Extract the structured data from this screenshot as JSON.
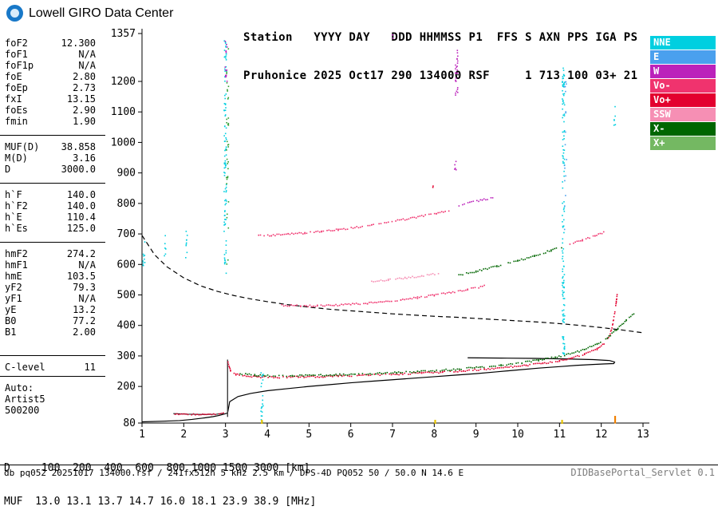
{
  "brand": {
    "logo_text": "Lowell GIRO Data Center"
  },
  "header": {
    "line1": "Station   YYYY DAY   DDD HHMMSS P1  FFS S AXN PPS IGA PS",
    "line2": "Pruhonice 2025 Oct17 290 134000 RSF     1 713 100 03+ 21"
  },
  "params": {
    "groups": [
      {
        "rule_top": false,
        "rule_bottom": false,
        "spacer": false,
        "rows": [
          {
            "label": "foF2",
            "value": "12.300"
          },
          {
            "label": "foF1",
            "value": "N/A"
          },
          {
            "label": "foF1p",
            "value": "N/A"
          },
          {
            "label": "foE",
            "value": "2.80"
          },
          {
            "label": "foEp",
            "value": "2.73"
          },
          {
            "label": "fxI",
            "value": "13.15"
          },
          {
            "label": "foEs",
            "value": "2.90"
          },
          {
            "label": "fmin",
            "value": "1.90"
          }
        ]
      },
      {
        "rule_top": true,
        "rule_bottom": false,
        "spacer": false,
        "rows": [
          {
            "label": "MUF(D)",
            "value": "38.858"
          },
          {
            "label": "M(D)",
            "value": "3.16"
          },
          {
            "label": "D",
            "value": "3000.0"
          }
        ]
      },
      {
        "rule_top": true,
        "rule_bottom": false,
        "spacer": false,
        "rows": [
          {
            "label": "h`F",
            "value": "140.0"
          },
          {
            "label": "h`F2",
            "value": "140.0"
          },
          {
            "label": "h`E",
            "value": "110.4"
          },
          {
            "label": "h`Es",
            "value": "125.0"
          }
        ]
      },
      {
        "rule_top": true,
        "rule_bottom": false,
        "spacer": false,
        "rows": [
          {
            "label": "hmF2",
            "value": "274.2"
          },
          {
            "label": "hmF1",
            "value": "N/A"
          },
          {
            "label": "hmE",
            "value": "103.5"
          },
          {
            "label": "yF2",
            "value": "79.3"
          },
          {
            "label": "yF1",
            "value": "N/A"
          },
          {
            "label": "yE",
            "value": "13.2"
          },
          {
            "label": "B0",
            "value": "77.2"
          },
          {
            "label": "B1",
            "value": "2.00"
          }
        ]
      },
      {
        "rule_top": true,
        "rule_bottom": true,
        "spacer": true,
        "rows": [
          {
            "label": "C-level",
            "value": "11"
          }
        ]
      },
      {
        "rule_top": false,
        "rule_bottom": false,
        "spacer": false,
        "rows": [
          {
            "label": "Auto:",
            "value": ""
          },
          {
            "label": "Artist5",
            "value": ""
          },
          {
            "label": "500200",
            "value": ""
          }
        ]
      }
    ]
  },
  "legend": {
    "items": [
      {
        "label": "NNE",
        "color": "#00cfe0"
      },
      {
        "label": "E",
        "color": "#4aa0ee"
      },
      {
        "label": "W",
        "color": "#bb22bb"
      },
      {
        "label": "Vo-",
        "color": "#f0336e"
      },
      {
        "label": "Vo+",
        "color": "#e3002f"
      },
      {
        "label": "SSW",
        "color": "#f68fb4"
      },
      {
        "label": "X-",
        "color": "#006600"
      },
      {
        "label": "X+",
        "color": "#74b862"
      }
    ]
  },
  "scaled_muf_table": {
    "d_label": "D",
    "d_values": [
      "100",
      "200",
      "400",
      "600",
      "800",
      "1000",
      "1500",
      "3000"
    ],
    "d_unit": "[km]",
    "muf_label": "MUF",
    "muf_values": [
      "13.0",
      "13.1",
      "13.7",
      "14.7",
      "16.0",
      "18.1",
      "23.9",
      "38.9"
    ],
    "muf_unit": "[MHz]"
  },
  "statusbar": {
    "left": "db pq052 20251017 134000.rsf / 241fx512h 5 kHz 2.5 km / DPS-4D PQ052 50 / 50.0 N 14.6 E",
    "right": "DIDBasePortal_Servlet 0.1"
  },
  "chart_data": {
    "type": "scatter",
    "content": "ionogram: virtual height vs frequency",
    "x_unit": "MHz",
    "y_unit": "km",
    "x_range": [
      1,
      13
    ],
    "y_range": [
      80,
      1357
    ],
    "x_ticks": [
      1,
      2,
      3,
      4,
      5,
      6,
      7,
      8,
      9,
      10,
      11,
      12,
      13
    ],
    "y_ticks": [
      1357,
      1200,
      1100,
      1000,
      900,
      800,
      700,
      600,
      500,
      400,
      300,
      200,
      80
    ],
    "traces": [
      {
        "name": "transmission-muf-curve",
        "style": "dashed",
        "color": "#000000",
        "width": 1.2,
        "points": [
          [
            1,
            695
          ],
          [
            1.3,
            632
          ],
          [
            1.6,
            592
          ],
          [
            2,
            556
          ],
          [
            2.4,
            530
          ],
          [
            2.8,
            512
          ],
          [
            3.2,
            498
          ],
          [
            3.6,
            487
          ],
          [
            4,
            478
          ],
          [
            4.5,
            468
          ],
          [
            5,
            460
          ],
          [
            5.5,
            453
          ],
          [
            6,
            448
          ],
          [
            6.5,
            443
          ],
          [
            7,
            438
          ],
          [
            7.5,
            434
          ],
          [
            8,
            430
          ],
          [
            8.5,
            427
          ],
          [
            9,
            423
          ],
          [
            9.5,
            419
          ],
          [
            10,
            415
          ],
          [
            10.5,
            411
          ],
          [
            11,
            406
          ],
          [
            11.5,
            400
          ],
          [
            12,
            393
          ],
          [
            12.5,
            385
          ],
          [
            13,
            376
          ]
        ]
      },
      {
        "name": "electron-density-profile",
        "style": "line",
        "color": "#000000",
        "width": 1.2,
        "points": [
          [
            1,
            84
          ],
          [
            1.5,
            86
          ],
          [
            1.9,
            88
          ],
          [
            2.2,
            92
          ],
          [
            2.5,
            97
          ],
          [
            2.7,
            101
          ],
          [
            2.85,
            105
          ],
          [
            2.98,
            110
          ],
          [
            3.05,
            113
          ],
          [
            3.1,
            150
          ],
          [
            3.3,
            167
          ],
          [
            3.6,
            177
          ],
          [
            4,
            186
          ],
          [
            4.5,
            193
          ],
          [
            5,
            200
          ],
          [
            5.5,
            206
          ],
          [
            6,
            212
          ],
          [
            6.5,
            217
          ],
          [
            7,
            222
          ],
          [
            7.5,
            227
          ],
          [
            8,
            232
          ],
          [
            8.5,
            237
          ],
          [
            9,
            242
          ],
          [
            9.5,
            248
          ],
          [
            10,
            254
          ],
          [
            10.5,
            260
          ],
          [
            11,
            265
          ],
          [
            11.4,
            269
          ],
          [
            11.8,
            272
          ],
          [
            12.1,
            274
          ],
          [
            12.3,
            275
          ],
          [
            12.32,
            280
          ],
          [
            12.2,
            285
          ],
          [
            11.8,
            288
          ],
          [
            11.2,
            290
          ],
          [
            10.4,
            292
          ],
          [
            9.6,
            293
          ],
          [
            8.8,
            294
          ]
        ]
      },
      {
        "name": "e-layer-line",
        "style": "line",
        "color": "#000000",
        "width": 1,
        "points": [
          [
            1.75,
            111
          ],
          [
            2.1,
            109
          ],
          [
            2.5,
            108
          ],
          [
            2.8,
            109
          ],
          [
            2.95,
            112
          ]
        ]
      },
      {
        "name": "e-f-cusp",
        "style": "line",
        "color": "#3c3c3c",
        "width": 1.4,
        "points": [
          [
            3.05,
            100
          ],
          [
            3.05,
            288
          ]
        ]
      },
      {
        "name": "e-layer-o-trace",
        "style": "dots",
        "color": "#e3002f",
        "points": [
          [
            1.75,
            110
          ],
          [
            2.1,
            108
          ],
          [
            2.5,
            107
          ],
          [
            2.8,
            108
          ],
          [
            2.95,
            111
          ]
        ]
      },
      {
        "name": "f-layer-o-trace",
        "style": "dots",
        "color": "#e3002f",
        "points": [
          [
            3.06,
            280
          ],
          [
            3.12,
            252
          ],
          [
            3.25,
            240
          ],
          [
            3.5,
            234
          ],
          [
            3.8,
            231
          ],
          [
            4.2,
            230
          ],
          [
            4.7,
            231
          ],
          [
            5.2,
            232
          ],
          [
            5.7,
            234
          ],
          [
            6.2,
            236
          ],
          [
            6.7,
            238
          ],
          [
            7.2,
            241
          ],
          [
            7.7,
            244
          ],
          [
            8.2,
            247
          ],
          [
            8.7,
            251
          ],
          [
            9.2,
            256
          ],
          [
            9.7,
            262
          ],
          [
            10.2,
            269
          ],
          [
            10.6,
            276
          ],
          [
            11,
            284
          ],
          [
            11.3,
            293
          ],
          [
            11.6,
            305
          ],
          [
            11.9,
            322
          ],
          [
            12.1,
            344
          ],
          [
            12.2,
            368
          ],
          [
            12.27,
            400
          ],
          [
            12.32,
            440
          ],
          [
            12.36,
            478
          ],
          [
            12.38,
            500
          ]
        ]
      },
      {
        "name": "f-layer-x-trace",
        "style": "dots",
        "color": "#006600",
        "points": [
          [
            3.35,
            242
          ],
          [
            3.7,
            237
          ],
          [
            4.1,
            235
          ],
          [
            4.6,
            235
          ],
          [
            5.1,
            236
          ],
          [
            5.6,
            238
          ],
          [
            6.1,
            240
          ],
          [
            6.6,
            242
          ],
          [
            7.1,
            245
          ],
          [
            7.6,
            248
          ],
          [
            8.1,
            252
          ],
          [
            8.6,
            257
          ],
          [
            9.1,
            263
          ],
          [
            9.6,
            270
          ],
          [
            10.1,
            278
          ],
          [
            10.5,
            286
          ],
          [
            10.9,
            296
          ],
          [
            11.3,
            308
          ],
          [
            11.6,
            321
          ],
          [
            11.9,
            338
          ],
          [
            12.15,
            360
          ],
          [
            12.4,
            390
          ],
          [
            12.6,
            418
          ],
          [
            12.78,
            440
          ]
        ]
      },
      {
        "name": "second-hop-o-trace",
        "style": "dots",
        "color": "#f0336e",
        "points": [
          [
            4.35,
            466
          ],
          [
            4.8,
            464
          ],
          [
            5.2,
            464
          ],
          [
            5.6,
            466
          ],
          [
            6,
            469
          ],
          [
            6.4,
            473
          ],
          [
            6.8,
            478
          ],
          [
            7.2,
            484
          ],
          [
            7.6,
            491
          ],
          [
            8,
            499
          ],
          [
            8.4,
            508
          ],
          [
            8.8,
            518
          ],
          [
            9.2,
            529
          ]
        ]
      },
      {
        "name": "second-hop-x-arc",
        "style": "dots",
        "color": "#f68fb4",
        "points": [
          [
            6.5,
            544
          ],
          [
            6.9,
            549
          ],
          [
            7.3,
            555
          ],
          [
            7.7,
            562
          ],
          [
            8.1,
            570
          ]
        ]
      },
      {
        "name": "second-hop-x-rising",
        "style": "dots",
        "color": "#006600",
        "points": [
          [
            8.5,
            562
          ],
          [
            9,
            577
          ],
          [
            9.5,
            594
          ],
          [
            10,
            612
          ],
          [
            10.4,
            628
          ],
          [
            10.8,
            646
          ],
          [
            11.05,
            656
          ]
        ]
      },
      {
        "name": "second-hop-tail",
        "style": "dots",
        "color": "#f0336e",
        "points": [
          [
            11.25,
            665
          ],
          [
            11.55,
            680
          ],
          [
            11.85,
            695
          ],
          [
            12.1,
            707
          ]
        ]
      },
      {
        "name": "third-hop-trace",
        "style": "dots",
        "color": "#f0336e",
        "points": [
          [
            3.75,
            694
          ],
          [
            4.1,
            696
          ],
          [
            4.5,
            699
          ],
          [
            4.9,
            703
          ],
          [
            5.3,
            708
          ],
          [
            5.7,
            714
          ],
          [
            6.1,
            721
          ],
          [
            6.5,
            729
          ],
          [
            6.9,
            738
          ],
          [
            7.3,
            748
          ],
          [
            7.7,
            758
          ],
          [
            8.05,
            767
          ],
          [
            8.35,
            775
          ]
        ]
      },
      {
        "name": "third-hop-x-cluster",
        "style": "dots",
        "color": "#bb22bb",
        "points": [
          [
            8.55,
            793
          ],
          [
            8.85,
            802
          ],
          [
            9.15,
            811
          ],
          [
            9.4,
            819
          ]
        ]
      }
    ],
    "noise_columns": [
      {
        "f": 2.98,
        "h_range": [
          560,
          1340
        ],
        "color": "#00cfe0",
        "count": 95
      },
      {
        "f": 3.03,
        "h_range": [
          600,
          1320
        ],
        "color": "#2f9e2f",
        "count": 35
      },
      {
        "f": 3.0,
        "h_range": [
          1190,
          1335
        ],
        "color": "#bb22bb",
        "count": 14
      },
      {
        "f": 8.52,
        "h_range": [
          1155,
          1320
        ],
        "color": "#bb22bb",
        "count": 26
      },
      {
        "f": 8.5,
        "h_range": [
          905,
          945
        ],
        "color": "#bb22bb",
        "count": 5
      },
      {
        "f": 11.08,
        "h_range": [
          300,
          1250
        ],
        "color": "#00cfe0",
        "count": 130
      },
      {
        "f": 11.13,
        "h_range": [
          620,
          1210
        ],
        "color": "#4aa0ee",
        "count": 18
      },
      {
        "f": 3.86,
        "h_range": [
          82,
          250
        ],
        "color": "#00cfe0",
        "count": 20
      },
      {
        "f": 1.03,
        "h_range": [
          590,
          710
        ],
        "color": "#00cfe0",
        "count": 10
      },
      {
        "f": 1.55,
        "h_range": [
          630,
          700
        ],
        "color": "#00cfe0",
        "count": 6
      },
      {
        "f": 2.05,
        "h_range": [
          615,
          720
        ],
        "color": "#00cfe0",
        "count": 9
      },
      {
        "f": 12.3,
        "h_range": [
          1040,
          1120
        ],
        "color": "#00cfe0",
        "count": 6
      },
      {
        "f": 7.0,
        "h_range": [
          1335,
          1356
        ],
        "color": "#bb22bb",
        "count": 3
      },
      {
        "f": 7.93,
        "h_range": [
          850,
          862
        ],
        "color": "#e3002f",
        "count": 2
      }
    ],
    "bottom_marks": [
      {
        "f": 3.87,
        "h": 84,
        "color": "#e8c400"
      },
      {
        "f": 8.02,
        "h": 84,
        "color": "#e8c400"
      },
      {
        "f": 11.06,
        "h": 84,
        "color": "#e8c400"
      },
      {
        "f": 12.33,
        "h": 85,
        "color": "#f08000"
      },
      {
        "f": 12.33,
        "h": 97,
        "color": "#f08000"
      }
    ]
  }
}
